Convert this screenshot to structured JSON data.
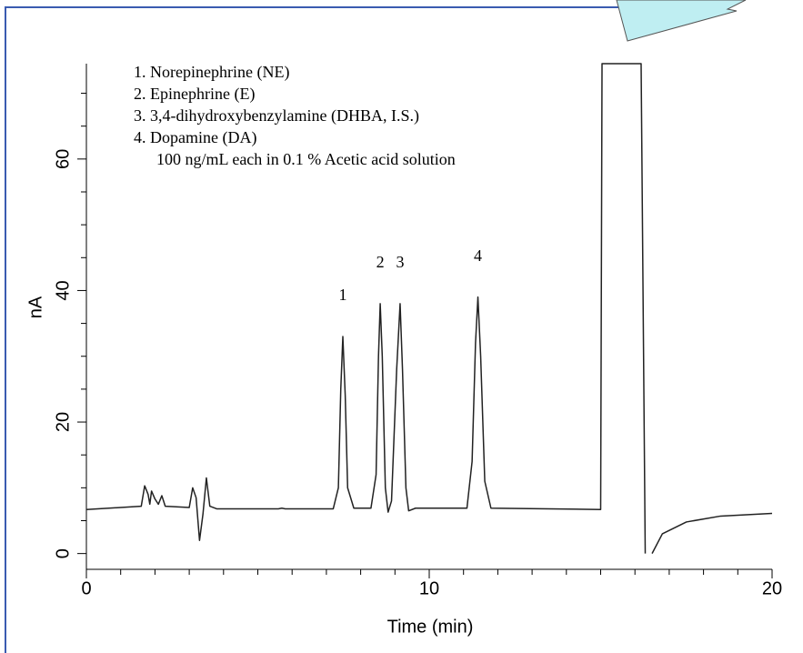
{
  "chart_data": {
    "type": "line",
    "xlabel": "Time (min)",
    "ylabel": "nA",
    "xlim": [
      0,
      20
    ],
    "ylim": [
      -2.4,
      74.5
    ],
    "xticks": [
      0,
      10,
      20
    ],
    "yticks": [
      0,
      20,
      40,
      60
    ],
    "xminorticks": [
      1,
      2,
      3,
      4,
      5,
      6,
      7,
      8,
      9,
      11,
      12,
      13,
      14,
      15,
      16,
      17,
      18,
      19
    ],
    "yminorticks": [
      5,
      10,
      15,
      25,
      30,
      35,
      45,
      50,
      55,
      65,
      70
    ],
    "color": "#222222",
    "legend_lines": [
      "1.  Norepinephrine (NE)",
      "2.  Epinephrine (E)",
      "3.  3,4-dihydroxybenzylamine (DHBA, I.S.)",
      "4.  Dopamine (DA)",
      "100 ng/mL each in 0.1 % Acetic acid solution"
    ],
    "peaks": [
      {
        "label": "1",
        "x": 7.48,
        "y": 33
      },
      {
        "label": "2",
        "x": 8.57,
        "y": 38
      },
      {
        "label": "3",
        "x": 9.15,
        "y": 38
      },
      {
        "label": "4",
        "x": 11.42,
        "y": 39
      }
    ],
    "x": [
      0,
      1.0,
      1.6,
      1.7,
      1.8,
      1.85,
      1.9,
      2.0,
      2.1,
      2.2,
      2.3,
      3.0,
      3.1,
      3.2,
      3.3,
      3.4,
      3.5,
      3.6,
      3.8,
      5.6,
      5.7,
      5.8,
      7.2,
      7.35,
      7.42,
      7.48,
      7.55,
      7.62,
      7.8,
      8.3,
      8.45,
      8.52,
      8.57,
      8.63,
      8.72,
      8.8,
      8.9,
      9.05,
      9.15,
      9.22,
      9.32,
      9.4,
      9.6,
      11.1,
      11.25,
      11.35,
      11.42,
      11.5,
      11.62,
      11.8,
      15.0,
      15.04,
      16.18,
      16.3,
      16.4,
      16.5,
      16.8,
      17.5,
      18.5,
      20
    ],
    "values": [
      6.7,
      7.0,
      7.2,
      10.3,
      9.0,
      7.5,
      9.5,
      8.3,
      7.5,
      8.8,
      7.2,
      7.0,
      10.0,
      8.5,
      2.0,
      6.0,
      11.5,
      7.2,
      6.8,
      6.8,
      6.9,
      6.8,
      6.8,
      10,
      25,
      33,
      24,
      10,
      6.9,
      6.9,
      12,
      30,
      38,
      30,
      10,
      6.3,
      8,
      28,
      38,
      28,
      10,
      6.5,
      6.9,
      6.9,
      14,
      32,
      39,
      30,
      11,
      6.9,
      6.7,
      74.5,
      74.5,
      0,
      null,
      0,
      3,
      4.8,
      5.7,
      6.1
    ]
  }
}
